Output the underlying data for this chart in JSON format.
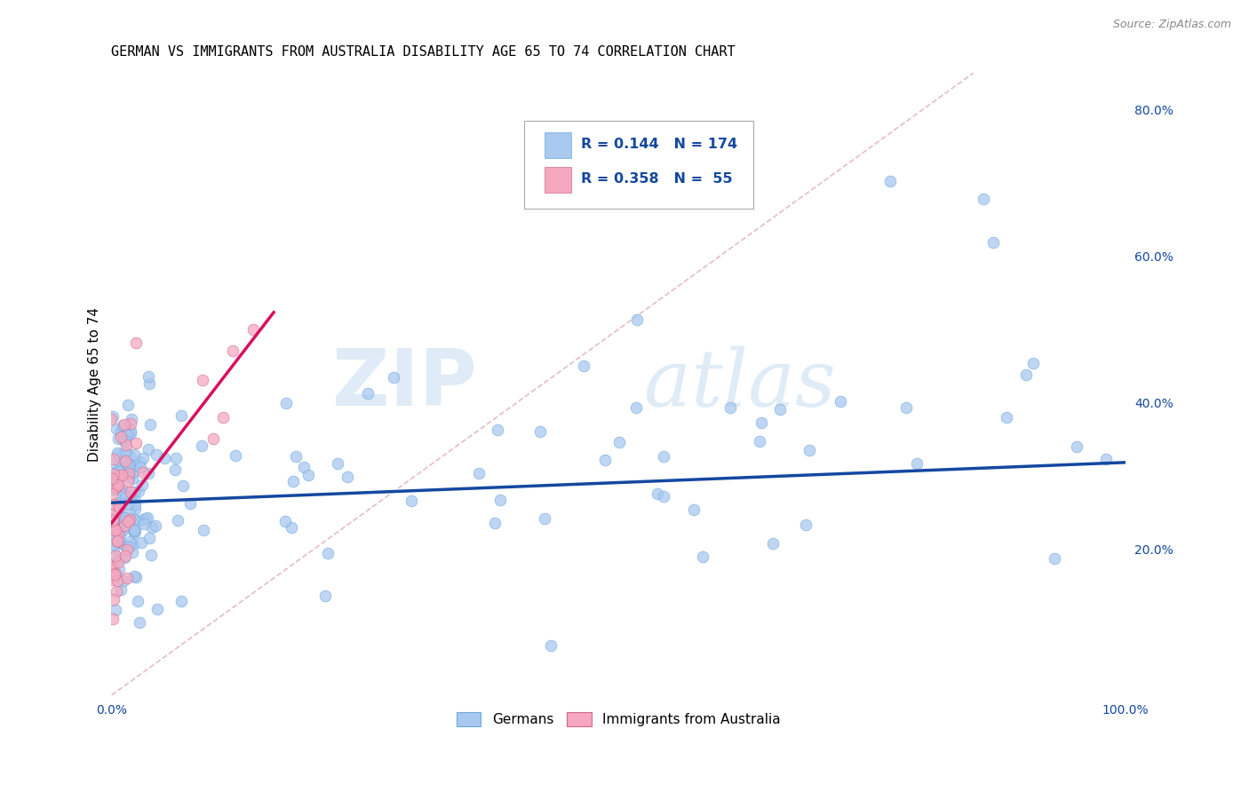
{
  "title": "GERMAN VS IMMIGRANTS FROM AUSTRALIA DISABILITY AGE 65 TO 74 CORRELATION CHART",
  "source": "Source: ZipAtlas.com",
  "ylabel": "Disability Age 65 to 74",
  "xlim": [
    0,
    1.0
  ],
  "ylim": [
    0.0,
    0.85
  ],
  "german_R": 0.144,
  "german_N": 174,
  "immigrant_R": 0.358,
  "immigrant_N": 55,
  "blue_scatter_color": "#A8C8F0",
  "pink_scatter_color": "#F5A8C0",
  "blue_line_color": "#1448A0",
  "pink_line_color": "#D81060",
  "ref_line_color": "#D0A0A8",
  "grid_color": "#cccccc",
  "background_color": "#ffffff",
  "right_tick_color": "#1448A0",
  "watermark_color": "#C5DCF0",
  "seed": 42
}
